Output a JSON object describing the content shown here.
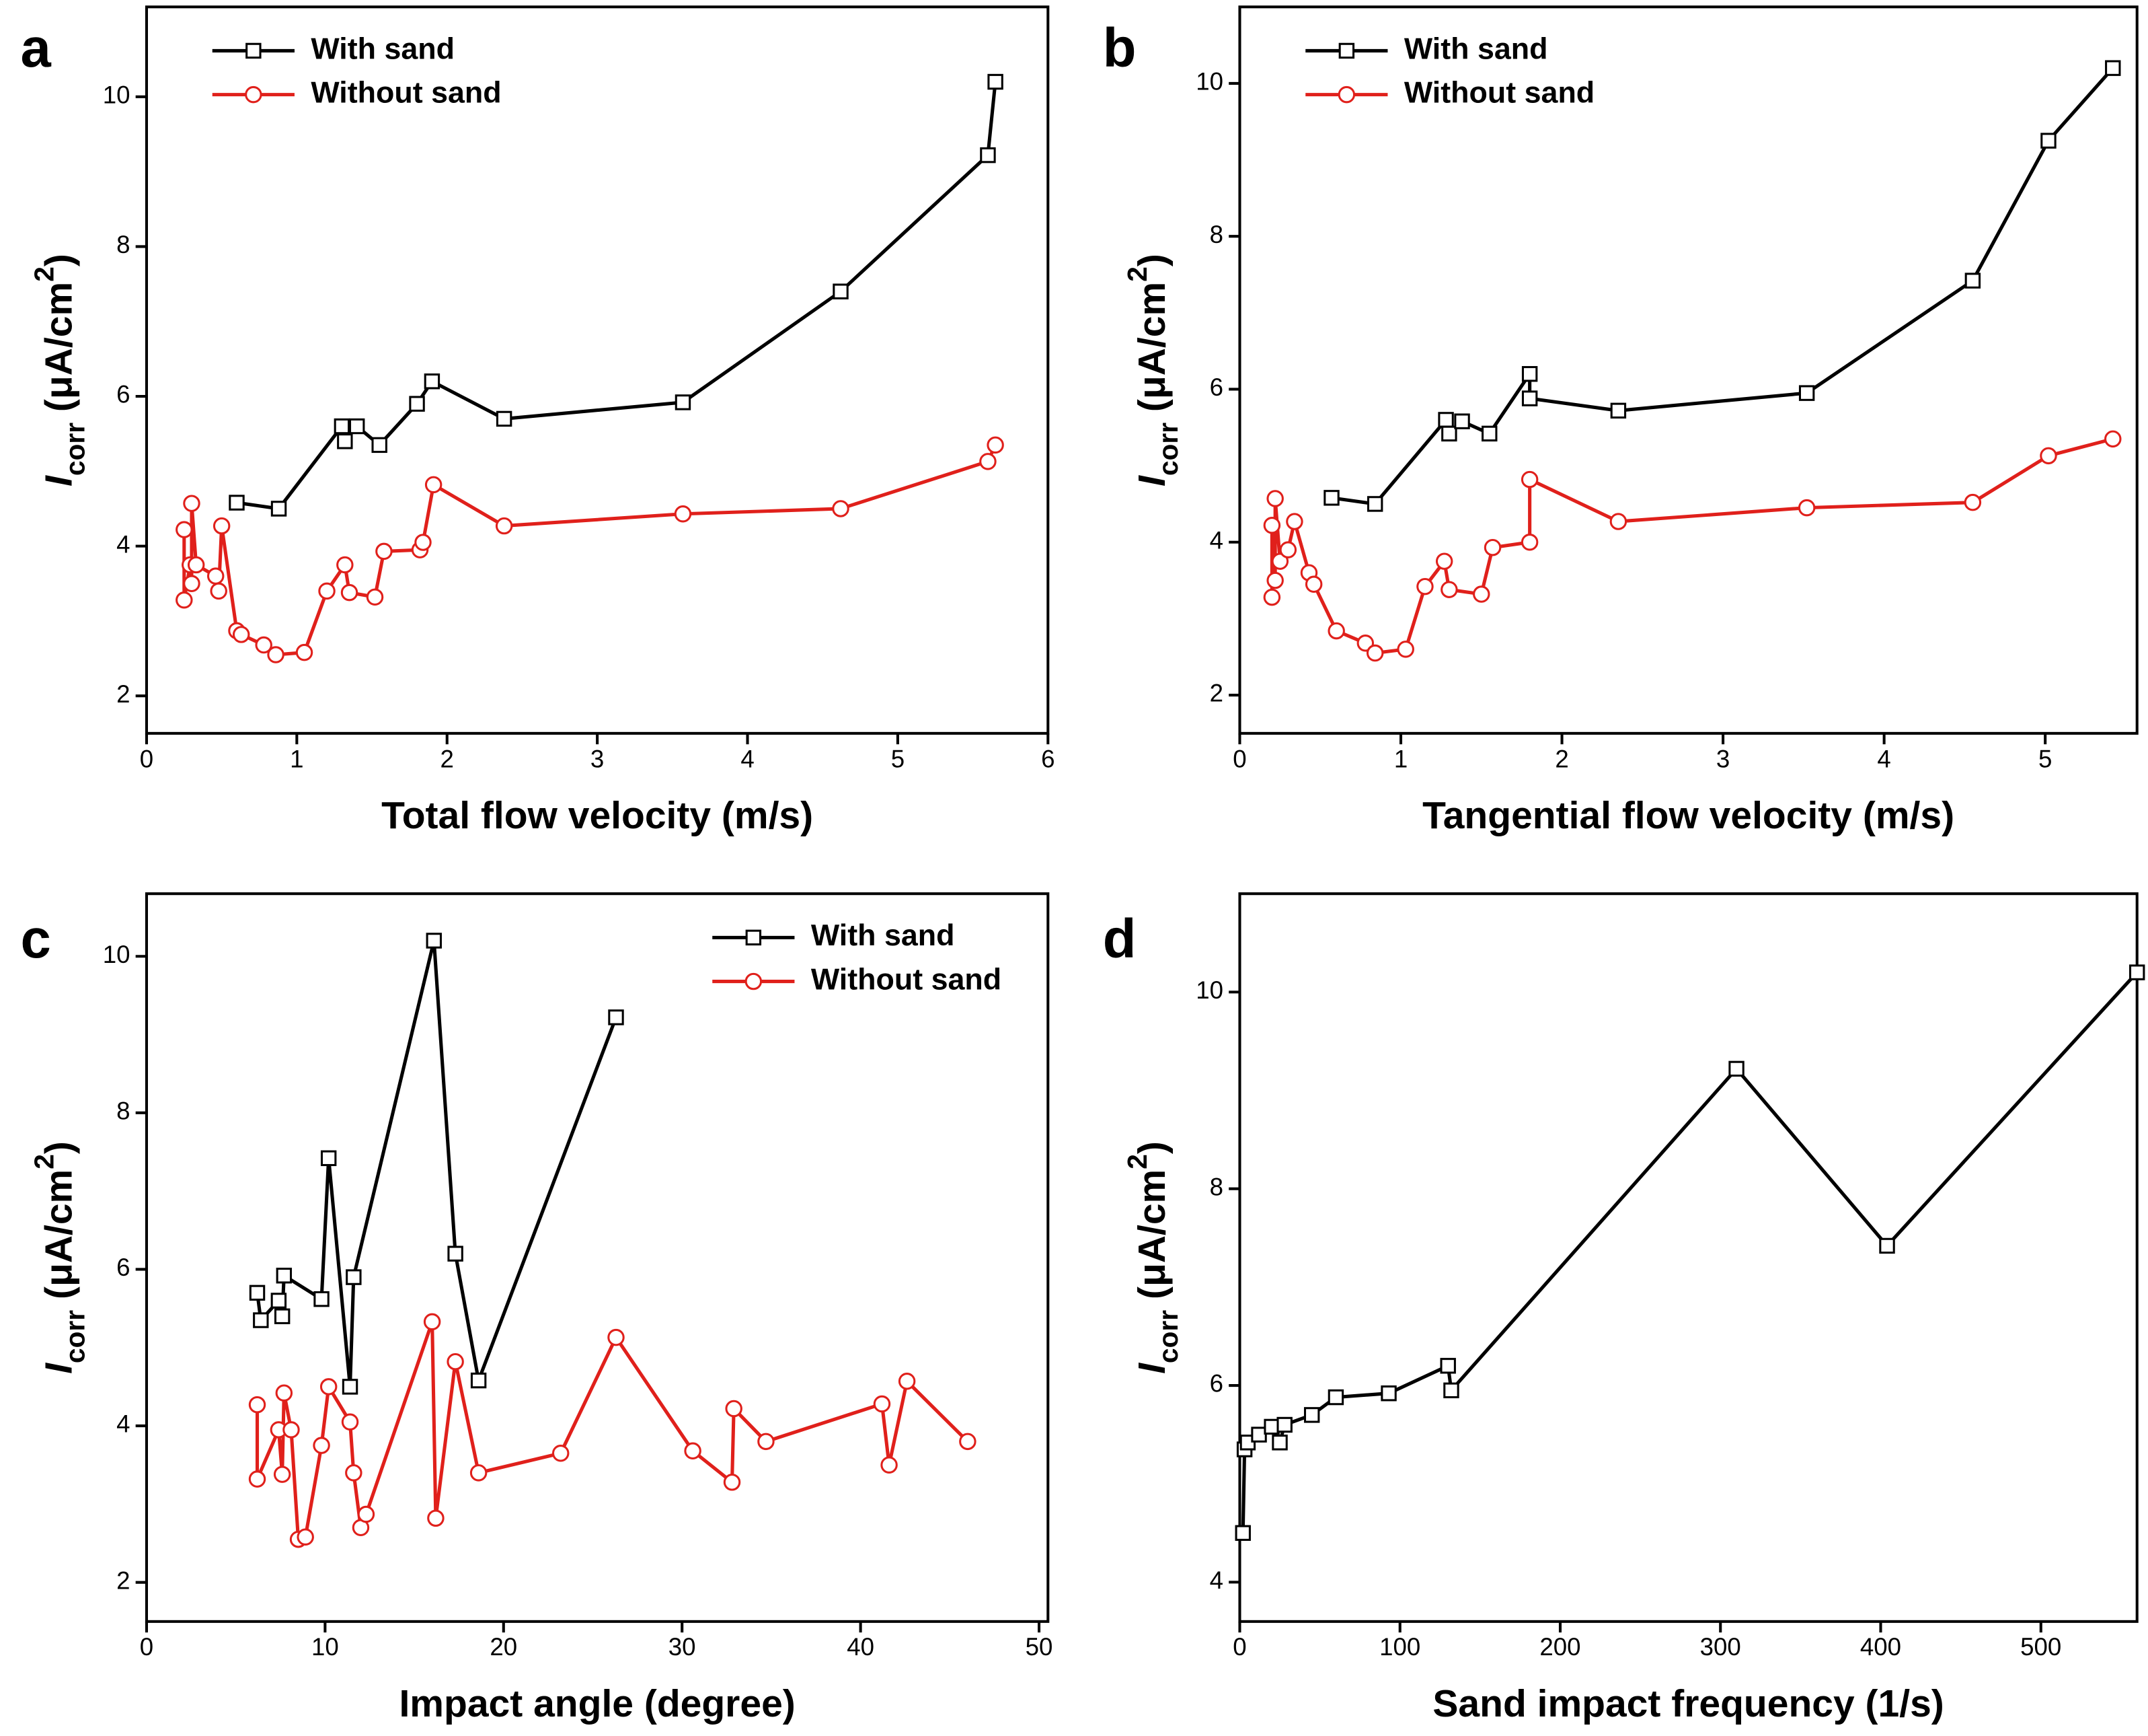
{
  "chart_data": [
    {
      "type": "line",
      "panel": "a",
      "xlabel": "Total flow velocity (m/s)",
      "ylabel_parts": [
        "I",
        "corr",
        " (μA/cm",
        "2",
        ")"
      ],
      "xlim": [
        0,
        6
      ],
      "ylim": [
        1.5,
        11.2
      ],
      "xticks": [
        0,
        1,
        2,
        3,
        4,
        5,
        6
      ],
      "yticks": [
        2,
        4,
        6,
        8,
        10
      ],
      "legend": "upper left",
      "series": [
        {
          "name": "With sand",
          "color": "#000000",
          "marker": "square",
          "x": [
            0.6,
            0.88,
            1.3,
            1.32,
            1.4,
            1.55,
            1.8,
            1.9,
            2.38,
            3.57,
            4.62,
            5.6,
            5.65
          ],
          "values": [
            4.58,
            4.5,
            5.6,
            5.4,
            5.6,
            5.35,
            5.9,
            6.2,
            5.7,
            5.92,
            7.4,
            9.22,
            10.2
          ]
        },
        {
          "name": "Without sand",
          "color": "#e0201b",
          "marker": "circle",
          "x": [
            0.25,
            0.25,
            0.29,
            0.3,
            0.3,
            0.33,
            0.46,
            0.48,
            0.5,
            0.6,
            0.63,
            0.78,
            0.86,
            1.05,
            1.2,
            1.32,
            1.35,
            1.52,
            1.58,
            1.82,
            1.84,
            1.91,
            2.38,
            3.57,
            4.62,
            5.6,
            5.65
          ],
          "values": [
            4.22,
            3.28,
            3.75,
            3.5,
            4.57,
            3.75,
            3.6,
            3.4,
            4.27,
            2.87,
            2.82,
            2.68,
            2.55,
            2.58,
            3.4,
            3.75,
            3.38,
            3.32,
            3.93,
            3.95,
            4.05,
            4.82,
            4.27,
            4.43,
            4.5,
            5.13,
            5.35
          ]
        }
      ]
    },
    {
      "type": "line",
      "panel": "b",
      "xlabel": "Tangential flow velocity (m/s)",
      "ylabel_parts": [
        "I",
        "corr",
        " (μA/cm",
        "2",
        ")"
      ],
      "xlim": [
        0,
        5.57
      ],
      "ylim": [
        1.5,
        11.0
      ],
      "xticks": [
        0,
        1,
        2,
        3,
        4,
        5
      ],
      "yticks": [
        2,
        4,
        6,
        8,
        10
      ],
      "legend": "upper left",
      "series": [
        {
          "name": "With sand",
          "color": "#000000",
          "marker": "square",
          "x": [
            0.57,
            0.84,
            1.28,
            1.3,
            1.38,
            1.55,
            1.8,
            1.8,
            2.35,
            3.52,
            4.55,
            5.02,
            5.42
          ],
          "values": [
            4.58,
            4.5,
            5.6,
            5.42,
            5.58,
            5.42,
            6.2,
            5.88,
            5.72,
            5.95,
            7.42,
            9.25,
            10.2
          ]
        },
        {
          "name": "Without sand",
          "color": "#e0201b",
          "marker": "circle",
          "x": [
            0.2,
            0.2,
            0.22,
            0.22,
            0.25,
            0.3,
            0.34,
            0.43,
            0.46,
            0.6,
            0.78,
            0.84,
            1.03,
            1.15,
            1.27,
            1.3,
            1.5,
            1.57,
            1.8,
            1.8,
            2.35,
            3.52,
            4.55,
            5.02,
            5.42
          ],
          "values": [
            3.28,
            4.22,
            3.5,
            4.57,
            3.75,
            3.9,
            4.27,
            3.6,
            3.45,
            2.84,
            2.68,
            2.55,
            2.6,
            3.42,
            3.75,
            3.38,
            3.32,
            3.93,
            4.0,
            4.82,
            4.27,
            4.45,
            4.52,
            5.13,
            5.35
          ]
        }
      ]
    },
    {
      "type": "line",
      "panel": "c",
      "xlabel": "Impact angle (degree)",
      "ylabel_parts": [
        "I",
        "corr",
        " (μA/cm",
        "2",
        ")"
      ],
      "xlim": [
        0,
        50.5
      ],
      "ylim": [
        1.5,
        10.8
      ],
      "xticks": [
        0,
        10,
        20,
        30,
        40,
        50
      ],
      "yticks": [
        2,
        4,
        6,
        8,
        10
      ],
      "legend": "upper right",
      "series": [
        {
          "name": "With sand",
          "color": "#000000",
          "marker": "square",
          "x": [
            6.2,
            6.4,
            7.4,
            7.6,
            7.7,
            9.8,
            10.2,
            11.4,
            11.6,
            16.1,
            17.3,
            18.6,
            26.3
          ],
          "values": [
            5.7,
            5.35,
            5.6,
            5.4,
            5.92,
            5.62,
            7.42,
            4.5,
            5.9,
            10.2,
            6.2,
            4.58,
            9.22
          ]
        },
        {
          "name": "Without sand",
          "color": "#e0201b",
          "marker": "circle",
          "x": [
            6.2,
            6.2,
            7.4,
            7.6,
            7.7,
            8.1,
            8.5,
            8.9,
            9.8,
            10.2,
            11.4,
            11.6,
            12.0,
            12.3,
            16.0,
            16.2,
            17.3,
            18.6,
            23.2,
            26.3,
            30.6,
            32.8,
            32.9,
            34.7,
            41.2,
            41.6,
            42.6,
            46.0
          ],
          "values": [
            4.27,
            3.32,
            3.95,
            3.38,
            4.42,
            3.95,
            2.55,
            2.58,
            3.75,
            4.5,
            4.05,
            3.4,
            2.7,
            2.87,
            5.33,
            2.82,
            4.82,
            3.4,
            3.65,
            5.13,
            3.68,
            3.28,
            4.22,
            3.8,
            4.28,
            3.5,
            4.57,
            3.8
          ]
        }
      ]
    },
    {
      "type": "line",
      "panel": "d",
      "xlabel": "Sand impact frequency (1/s)",
      "ylabel_parts": [
        "I",
        "corr",
        " (μA/cm",
        "2",
        ")"
      ],
      "xlim": [
        0,
        560
      ],
      "ylim": [
        3.6,
        11.0
      ],
      "xticks": [
        0,
        100,
        200,
        300,
        400,
        500
      ],
      "yticks": [
        4,
        6,
        8,
        10
      ],
      "series": [
        {
          "color": "#000000",
          "marker": "square",
          "x": [
            2,
            3,
            5,
            12,
            20,
            25,
            28,
            45,
            60,
            93,
            130,
            132,
            310,
            404,
            560
          ],
          "values": [
            4.5,
            5.35,
            5.42,
            5.5,
            5.58,
            5.42,
            5.6,
            5.7,
            5.88,
            5.92,
            6.2,
            5.95,
            9.22,
            7.42,
            10.2
          ]
        }
      ]
    }
  ]
}
